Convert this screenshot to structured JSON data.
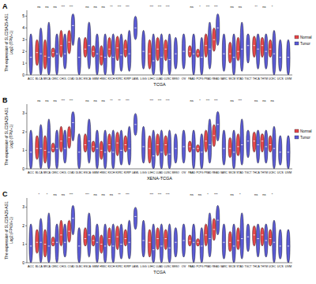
{
  "chart_data": [
    {
      "type": "violin",
      "panel": "A",
      "x_label": "TCGA",
      "y_label": [
        "The expression of SLC25A25-AS1",
        "Log2 (TPM+1)"
      ],
      "categories": [
        "ACC",
        "BLCA",
        "BRCA",
        "CESC",
        "CHOL",
        "COAD",
        "DLBC",
        "ESCA",
        "GBM",
        "HNSC",
        "KICH",
        "KIRC",
        "KIRP",
        "LAML",
        "LGG",
        "LIHC",
        "LUAD",
        "LUSC",
        "MESO",
        "OV",
        "PAAD",
        "PCPG",
        "PRAD",
        "READ",
        "SARC",
        "SKCM",
        "STAD",
        "TGCT",
        "THCA",
        "THYM",
        "UCEC",
        "UCS",
        "UVM"
      ],
      "ylim": [
        0,
        5.5
      ],
      "yticks": [
        0,
        1,
        2,
        3,
        4,
        5
      ],
      "legend": "right",
      "annotations": [
        null,
        "ns",
        "ns",
        "ns",
        "***",
        "***",
        null,
        "ns",
        "ns",
        "ns",
        "**",
        "***",
        "***",
        null,
        null,
        "***",
        "***",
        "***",
        null,
        null,
        "ns",
        "*",
        "***",
        "***",
        null,
        "ns",
        "ns",
        null,
        "**",
        "ns",
        "*",
        null,
        null
      ],
      "series": [
        {
          "name": "Normal",
          "color": "#e8474b",
          "values": [
            null,
            1.9,
            1.6,
            1.9,
            2.5,
            2.8,
            null,
            2.2,
            2,
            1.6,
            2.2,
            2.3,
            2.2,
            null,
            null,
            1.8,
            2.2,
            2.2,
            null,
            null,
            2,
            1.8,
            2.5,
            3,
            null,
            1.8,
            2,
            null,
            2.5,
            2.5,
            2.2,
            null,
            null
          ],
          "low": [
            null,
            0.8,
            0.5,
            1.5,
            1.5,
            1.8,
            null,
            1.5,
            1.5,
            0.8,
            1.5,
            1.2,
            1.5,
            null,
            null,
            0.5,
            1.2,
            1.2,
            null,
            null,
            1.5,
            1.5,
            1.5,
            2,
            null,
            1,
            1.2,
            null,
            1.5,
            1.5,
            1.5,
            null,
            null
          ],
          "high": [
            null,
            3,
            3,
            2.3,
            3.8,
            3.8,
            null,
            3.2,
            2.5,
            2.5,
            3.2,
            3.3,
            3,
            null,
            null,
            3,
            3.2,
            3,
            null,
            null,
            2.5,
            2.2,
            3.5,
            4,
            null,
            2.8,
            3.2,
            null,
            3.3,
            3.2,
            3,
            null,
            null
          ]
        },
        {
          "name": "Tumor",
          "color": "#5b5bd6",
          "values": [
            1.5,
            1.8,
            1.5,
            1.8,
            1.8,
            4.2,
            1.5,
            2.5,
            1.8,
            1.5,
            1.5,
            1.7,
            1.8,
            4,
            2,
            1.2,
            1.5,
            1.3,
            1.8,
            2,
            1.8,
            1.5,
            2.2,
            4,
            1.8,
            1.5,
            2.2,
            2.5,
            2.2,
            2,
            1.8,
            1.5,
            1.5
          ],
          "low": [
            0,
            0,
            0,
            0,
            0.5,
            2.5,
            0,
            0.5,
            0,
            0,
            0,
            0.3,
            0.3,
            3,
            0.5,
            0,
            0,
            0,
            0.5,
            0.5,
            0,
            0,
            0.5,
            2.5,
            0.3,
            0,
            0.3,
            1,
            0.5,
            0.5,
            0,
            0.3,
            0
          ],
          "high": [
            3.5,
            4,
            4.5,
            3.5,
            3.5,
            5.2,
            3.2,
            4.5,
            3.5,
            3.5,
            3.5,
            3.5,
            3.8,
            5,
            3.8,
            3.5,
            3.5,
            3.5,
            3.2,
            3.5,
            3.5,
            3.2,
            4.5,
            5.2,
            3.5,
            3.5,
            4.5,
            3.5,
            3.5,
            3.5,
            3.8,
            3,
            3
          ]
        }
      ]
    },
    {
      "type": "violin",
      "panel": "B",
      "x_label": "XENA-TCGA",
      "y_label": [
        "The expression of SLC25A25-AS1",
        "Log2 (TPM+1)"
      ],
      "categories": [
        "ACC",
        "BLCA",
        "BRCA",
        "CESC",
        "CHOL",
        "COAD",
        "DLBC",
        "ESCA",
        "GBM",
        "HNSC",
        "KICH",
        "KIRC",
        "KIRP",
        "LAML",
        "LGG",
        "LIHC",
        "LUAD",
        "LUSC",
        "MESO",
        "OV",
        "PAAD",
        "PCPG",
        "PRAD",
        "READ",
        "SARC",
        "SKCM",
        "STAD",
        "TGCT",
        "THCA",
        "THYM",
        "UCEC",
        "UCS",
        "UVM"
      ],
      "ylim": [
        0,
        3.5
      ],
      "yticks": [
        0,
        1,
        2,
        3
      ],
      "legend": "right",
      "annotations": [
        null,
        "ns",
        "ns",
        "ns",
        "***",
        "***",
        null,
        "ns",
        "ns",
        "ns",
        "**",
        "**",
        "***",
        null,
        null,
        "***",
        "***",
        "***",
        null,
        null,
        "ns",
        "*",
        "***",
        "***",
        null,
        "ns",
        "***",
        null,
        "ns",
        "ns",
        "ns",
        null,
        null
      ],
      "series": [
        {
          "name": "Normal",
          "color": "#e8474b",
          "values": [
            null,
            1.1,
            1,
            1.1,
            1.5,
            1.7,
            null,
            1.3,
            1.2,
            1,
            1.3,
            1.4,
            1.3,
            null,
            null,
            1.1,
            1.3,
            1.3,
            null,
            null,
            1.2,
            1.1,
            1.5,
            1.8,
            null,
            1.1,
            1.2,
            null,
            1.5,
            1.5,
            1.3,
            null,
            null
          ],
          "low": [
            null,
            0.5,
            0.3,
            0.9,
            0.9,
            1.1,
            null,
            0.9,
            0.9,
            0.5,
            0.9,
            0.7,
            0.9,
            null,
            null,
            0.3,
            0.7,
            0.7,
            null,
            null,
            0.9,
            0.9,
            0.9,
            1.2,
            null,
            0.6,
            0.7,
            null,
            0.9,
            0.9,
            0.9,
            null,
            null
          ],
          "high": [
            null,
            1.8,
            1.8,
            1.4,
            2.3,
            2.3,
            null,
            1.9,
            1.5,
            1.5,
            1.9,
            2,
            1.8,
            null,
            null,
            1.8,
            1.9,
            1.8,
            null,
            null,
            1.5,
            1.3,
            2.1,
            2.4,
            null,
            1.7,
            1.9,
            null,
            2,
            1.9,
            1.8,
            null,
            null
          ]
        },
        {
          "name": "Tumor",
          "color": "#5b5bd6",
          "values": [
            0.9,
            1.1,
            0.9,
            1.1,
            1.1,
            2.5,
            0.9,
            1.5,
            1.1,
            0.9,
            0.9,
            1,
            1.1,
            2.4,
            1.2,
            0.7,
            0.9,
            0.8,
            1.1,
            1.2,
            1.1,
            0.9,
            1.3,
            2.4,
            1.1,
            0.9,
            1.3,
            1.5,
            1.3,
            1.2,
            1.1,
            0.9,
            0.9
          ],
          "low": [
            0,
            0,
            0,
            0,
            0.3,
            1.5,
            0,
            0.3,
            0,
            0,
            0,
            0.2,
            0.2,
            1.8,
            0.3,
            0,
            0,
            0,
            0.3,
            0.3,
            0,
            0,
            0.3,
            1.5,
            0.2,
            0,
            0.2,
            0.6,
            0.3,
            0.3,
            0,
            0.2,
            0
          ],
          "high": [
            2.1,
            2.4,
            2.7,
            2.1,
            2.1,
            3.1,
            1.9,
            2.7,
            2.1,
            2.1,
            2.1,
            2.1,
            2.3,
            3,
            2.3,
            2.1,
            2.1,
            2.1,
            1.9,
            2.1,
            2.1,
            1.9,
            2.7,
            3.1,
            2.1,
            2.1,
            2.7,
            2.1,
            2.1,
            2.1,
            2.3,
            1.8,
            1.8
          ]
        }
      ]
    },
    {
      "type": "violin",
      "panel": "C",
      "x_label": "TCGA",
      "y_label": [
        "The expression of SLC25A25-AS1",
        "Log2 (FPKM+1)"
      ],
      "categories": [
        "ACC",
        "BLCA",
        "BRCA",
        "CESC",
        "CHOL",
        "COAD",
        "DLBC",
        "ESCA",
        "GBM",
        "HNSC",
        "KICH",
        "KIRC",
        "KIRP",
        "LAML",
        "LGG",
        "LIHC",
        "LUAD",
        "LUSC",
        "MESO",
        "OV",
        "PAAD",
        "PCPG",
        "PRAD",
        "READ",
        "SARC",
        "SKCM",
        "STAD",
        "TGCT",
        "THCA",
        "THYM",
        "UCEC",
        "UCS",
        "UVM"
      ],
      "ylim": [
        0,
        3.5
      ],
      "yticks": [
        0,
        1,
        2,
        3
      ],
      "annotations": [
        null,
        "*",
        "*",
        "ns",
        "ns",
        "***",
        null,
        "***",
        "ns",
        "ns",
        "ns",
        "**",
        "***",
        null,
        null,
        "***",
        "***",
        "***",
        null,
        null,
        "ns",
        "ns",
        "*",
        "***",
        null,
        "ns",
        "*",
        null,
        "ns",
        "ns",
        "*",
        null,
        null
      ],
      "series": [
        {
          "name": "Normal",
          "color": "#e8474b",
          "values": [
            null,
            1.1,
            1,
            1.1,
            1.5,
            1.7,
            null,
            1.3,
            1.2,
            1,
            1.3,
            1.4,
            1.3,
            null,
            null,
            1.1,
            1.3,
            1.3,
            null,
            null,
            1.2,
            1.1,
            1.5,
            1.8,
            null,
            1.1,
            1.2,
            null,
            1.5,
            1.5,
            1.3,
            null,
            null
          ],
          "low": [
            null,
            0.5,
            0.3,
            0.9,
            0.9,
            1.1,
            null,
            0.9,
            0.9,
            0.5,
            0.9,
            0.7,
            0.9,
            null,
            null,
            0.3,
            0.7,
            0.7,
            null,
            null,
            0.9,
            0.9,
            0.9,
            1.2,
            null,
            0.6,
            0.7,
            null,
            0.9,
            0.9,
            0.9,
            null,
            null
          ],
          "high": [
            null,
            1.8,
            1.8,
            1.4,
            2.3,
            2.3,
            null,
            1.9,
            1.5,
            1.5,
            1.9,
            2,
            1.8,
            null,
            null,
            1.8,
            1.9,
            1.8,
            null,
            null,
            1.5,
            1.3,
            2.1,
            2.4,
            null,
            1.7,
            1.9,
            null,
            2,
            1.9,
            1.8,
            null,
            null
          ]
        },
        {
          "name": "Tumor",
          "color": "#5b5bd6",
          "values": [
            0.9,
            1.1,
            0.9,
            1.1,
            1.1,
            2.4,
            0.9,
            1.5,
            1.1,
            0.9,
            0.9,
            1,
            1.1,
            2.5,
            1.2,
            0.7,
            0.9,
            0.8,
            1.1,
            1.2,
            1.1,
            0.9,
            1.3,
            2.3,
            1.1,
            0.9,
            1.3,
            1.4,
            1.3,
            1.2,
            1.1,
            0.9,
            0.9
          ],
          "low": [
            0,
            0,
            0,
            0,
            0.3,
            1.5,
            0,
            0.3,
            0,
            0,
            0,
            0.2,
            0.2,
            1.8,
            0.3,
            0,
            0,
            0,
            0.3,
            0.3,
            0,
            0,
            0.3,
            1.5,
            0.2,
            0,
            0.2,
            0.6,
            0.3,
            0.3,
            0,
            0.2,
            0
          ],
          "high": [
            2.1,
            2.4,
            2.7,
            2.1,
            2.1,
            3.1,
            1.9,
            2.7,
            2.1,
            2.1,
            2.1,
            2.1,
            2.3,
            3,
            2.3,
            2.1,
            2.1,
            2.1,
            1.9,
            2.1,
            2.1,
            1.9,
            2.7,
            3.1,
            2.1,
            2.1,
            2.7,
            2.1,
            2.1,
            2.1,
            2.3,
            1.8,
            1.8
          ]
        }
      ]
    }
  ]
}
